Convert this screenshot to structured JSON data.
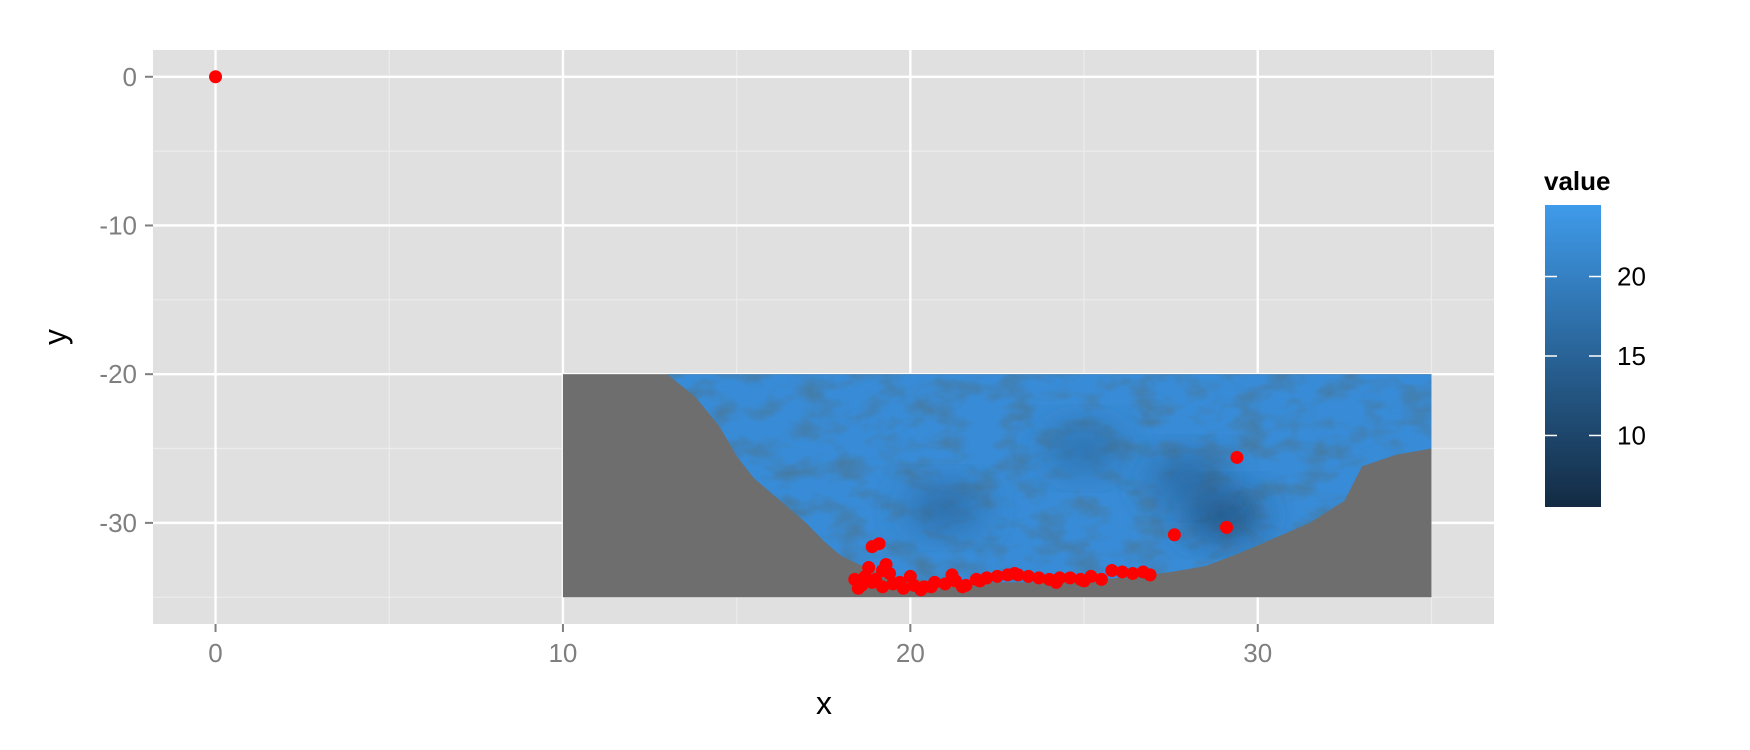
{
  "chart_data": {
    "type": "heatmap",
    "title": "",
    "xlabel": "x",
    "ylabel": "y",
    "xlim": [
      -1.8,
      36.8
    ],
    "ylim": [
      -36.8,
      1.8
    ],
    "x_ticks": [
      0,
      10,
      20,
      30
    ],
    "x_tick_labels": [
      "0",
      "10",
      "20",
      "30"
    ],
    "y_ticks": [
      0,
      -10,
      -20,
      -30
    ],
    "y_tick_labels": [
      "0",
      "-10",
      "-20",
      "-30"
    ],
    "grid": true,
    "raster": {
      "x_range": [
        10,
        35
      ],
      "y_range": [
        -35,
        -20
      ],
      "na_color": "#6e6e6e",
      "ocean_boundary": [
        [
          13.0,
          -20.0
        ],
        [
          13.8,
          -21.5
        ],
        [
          14.5,
          -23.5
        ],
        [
          15.0,
          -25.5
        ],
        [
          15.5,
          -27.0
        ],
        [
          16.0,
          -28.0
        ],
        [
          16.5,
          -29.0
        ],
        [
          17.0,
          -30.0
        ],
        [
          17.5,
          -31.2
        ],
        [
          18.0,
          -32.2
        ],
        [
          18.7,
          -33.0
        ],
        [
          19.5,
          -33.6
        ],
        [
          20.5,
          -33.9
        ],
        [
          22.0,
          -34.0
        ],
        [
          24.0,
          -34.0
        ],
        [
          25.5,
          -33.8
        ],
        [
          26.5,
          -33.6
        ],
        [
          27.5,
          -33.3
        ],
        [
          28.5,
          -32.9
        ],
        [
          29.5,
          -32.0
        ],
        [
          30.5,
          -31.0
        ],
        [
          31.5,
          -30.0
        ],
        [
          32.5,
          -28.5
        ],
        [
          33.0,
          -26.2
        ],
        [
          34.0,
          -25.4
        ],
        [
          35.0,
          -25.0
        ],
        [
          35.0,
          -20.0
        ]
      ],
      "value_range": [
        5.5,
        24.5
      ],
      "dark_spots": [
        {
          "x": 29.0,
          "y": -29.5,
          "value": 9
        },
        {
          "x": 28.0,
          "y": -27.0,
          "value": 14
        },
        {
          "x": 25.0,
          "y": -25.0,
          "value": 16
        },
        {
          "x": 21.0,
          "y": -29.0,
          "value": 15
        }
      ]
    },
    "points": {
      "color": "#ff0000",
      "x": [
        0,
        29.4,
        29.1,
        27.6,
        19.1,
        18.9,
        19.3,
        19.2,
        18.8,
        18.4,
        18.6,
        18.9,
        19.2,
        19.5,
        19.8,
        20.1,
        20.4,
        20.7,
        21.0,
        21.3,
        21.6,
        21.9,
        22.2,
        22.5,
        22.8,
        23.1,
        23.4,
        23.7,
        24.0,
        24.3,
        24.6,
        24.9,
        25.2,
        25.5,
        25.8,
        26.1,
        26.4,
        26.7,
        26.9,
        18.5,
        18.7,
        19.0,
        19.4,
        19.7,
        20.0,
        20.3,
        20.6,
        21.2,
        21.5,
        22.0,
        23.0,
        24.2,
        25.0
      ],
      "y": [
        0,
        -25.6,
        -30.3,
        -30.8,
        -31.4,
        -31.6,
        -32.8,
        -33.2,
        -33.0,
        -33.8,
        -34.2,
        -34.0,
        -34.3,
        -34.1,
        -34.4,
        -34.2,
        -34.3,
        -34.0,
        -34.1,
        -33.9,
        -34.2,
        -33.8,
        -33.7,
        -33.6,
        -33.5,
        -33.5,
        -33.6,
        -33.7,
        -33.8,
        -33.7,
        -33.7,
        -33.8,
        -33.6,
        -33.8,
        -33.2,
        -33.3,
        -33.4,
        -33.3,
        -33.5,
        -34.4,
        -33.6,
        -33.8,
        -33.4,
        -34.0,
        -33.6,
        -34.5,
        -34.3,
        -33.5,
        -34.3,
        -33.9,
        -33.4,
        -34.0,
        -33.9
      ]
    },
    "legend": {
      "title": "value",
      "placement": "right",
      "labels": [
        "20",
        "15",
        "10"
      ],
      "values": [
        20,
        15,
        10
      ],
      "low_color": "#132b43",
      "high_color": "#3f9bea"
    },
    "colors": {
      "panel_bg": "#e0e0e0",
      "grid_major": "#ffffff",
      "grid_minor": "#ececec"
    }
  }
}
